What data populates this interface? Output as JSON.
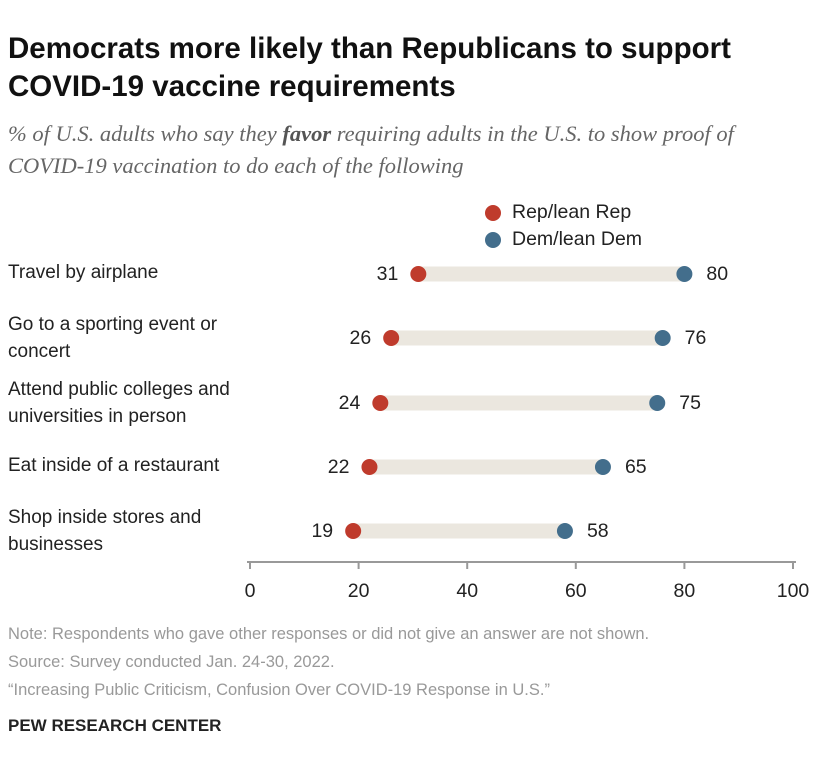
{
  "chart_data": {
    "type": "dot",
    "title": "Democrats more likely than Republicans to support COVID-19 vaccine requirements",
    "subtitle": [
      "% of U.S. adults who say they ",
      "favor",
      " requiring adults in the U.S. to show proof of COVID-19 vaccination to do each of the following"
    ],
    "categories": [
      "Travel by airplane",
      "Go to a sporting event or concert",
      "Attend public colleges and universities in person",
      "Eat inside of a restaurant",
      "Shop inside stores and businesses"
    ],
    "series": [
      {
        "name": "Rep/lean Rep",
        "color": "#bf3b2c",
        "values": [
          31,
          26,
          24,
          22,
          19
        ]
      },
      {
        "name": "Dem/lean Dem",
        "color": "#436e8c",
        "values": [
          80,
          76,
          75,
          65,
          58
        ]
      }
    ],
    "xlim": [
      0,
      100
    ],
    "xticks": [
      0,
      20,
      40,
      60,
      80,
      100
    ],
    "track_color": "#ebe7df",
    "note": "Note: Respondents who gave other responses or did not give an answer are not shown.",
    "source": "Source: Survey conducted Jan. 24-30, 2022.",
    "report": "“Increasing Public Criticism, Confusion Over COVID-19 Response in U.S.”",
    "organization": "PEW RESEARCH CENTER"
  }
}
